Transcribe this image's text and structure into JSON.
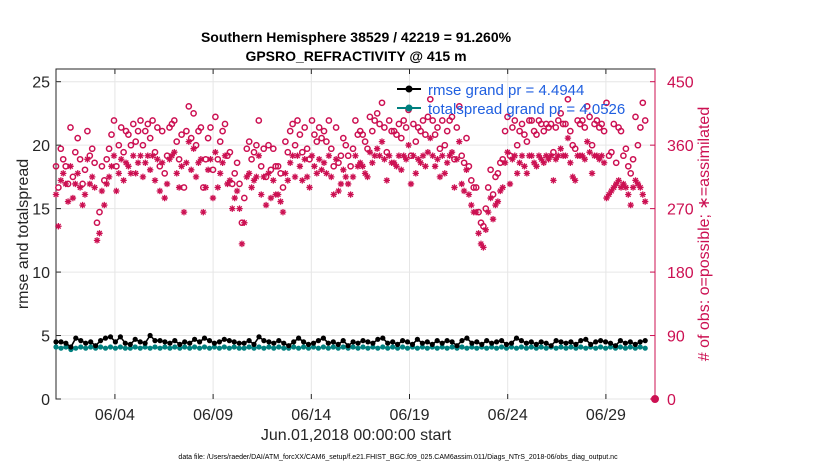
{
  "colors": {
    "rmse": "#000000",
    "spread": "#00807f",
    "obs": "#cc1052",
    "legend_text": "#1f5fe0",
    "axis": "#262626",
    "grid": "#e6e6e6"
  },
  "chart_data": {
    "type": "line",
    "title": "Southern Hemisphere 38529 / 42219 = 91.260%",
    "subtitle": "GPSRO_REFRACTIVITY @ 415 m",
    "xlabel": "Jun.01,2018 00:00:00 start",
    "ylabel": "rmse and totalspread",
    "ylabel_right": "# of obs: o=possible; ∗=assimilated",
    "footer": "data file: /Users/raeder/DAI/ATM_forcXX/CAM6_setup/f.e21.FHIST_BGC.f09_025.CAM6assim.011/Diags_NTrS_2018-06/obs_diag_output.nc",
    "xlim": [
      1,
      31.5
    ],
    "ylim": [
      0,
      26
    ],
    "ylim_right": [
      0,
      468
    ],
    "x_ticks": [
      4,
      9,
      14,
      19,
      24,
      29
    ],
    "x_tick_labels": [
      "06/04",
      "06/09",
      "06/14",
      "06/19",
      "06/24",
      "06/29"
    ],
    "y_ticks": [
      0,
      5,
      10,
      15,
      20,
      25
    ],
    "y_tick_labels": [
      "0",
      "5",
      "10",
      "15",
      "20",
      "25"
    ],
    "y_right_ticks": [
      0,
      90,
      180,
      270,
      360,
      450
    ],
    "y_right_tick_labels": [
      "0",
      "90",
      "180",
      "270",
      "360",
      "450"
    ],
    "legend": [
      "rmse grand pr = 4.4944",
      "totalspread grand pr = 4.0526"
    ],
    "series": [
      {
        "name": "rmse",
        "values": [
          4.5,
          4.5,
          4.4,
          4.1,
          4.8,
          4.6,
          4.4,
          4.5,
          4.2,
          4.6,
          4.8,
          4.9,
          4.5,
          4.9,
          4.4,
          4.3,
          4.7,
          4.5,
          4.4,
          5.0,
          4.6,
          4.6,
          4.5,
          4.4,
          4.6,
          4.3,
          4.5,
          4.4,
          4.7,
          4.5,
          4.8,
          4.6,
          4.4,
          4.5,
          4.7,
          4.6,
          4.5,
          4.4,
          4.4,
          4.6,
          4.3,
          4.9,
          4.6,
          4.5,
          4.4,
          4.6,
          4.4,
          4.2,
          4.5,
          4.8,
          4.5,
          4.3,
          4.4,
          4.6,
          4.8,
          4.4,
          4.5,
          4.3,
          4.6,
          4.2,
          4.5,
          4.4,
          4.6,
          4.5,
          4.4,
          4.7,
          4.8,
          4.4,
          4.5,
          4.3,
          4.6,
          4.5,
          4.3,
          4.7,
          4.4,
          4.5,
          4.3,
          4.6,
          4.4,
          4.6,
          4.5,
          4.2,
          4.6,
          4.8,
          4.4,
          4.5,
          4.3,
          4.6,
          4.4,
          4.5,
          4.6,
          4.3,
          4.4,
          4.8,
          4.6,
          4.4,
          4.5,
          4.3,
          4.5,
          4.4,
          4.2,
          4.6,
          4.5,
          4.4,
          4.5,
          4.3,
          4.6,
          4.7,
          4.3,
          4.5,
          4.6,
          4.5,
          4.4,
          4.2,
          4.6,
          4.4,
          4.5,
          4.3,
          4.5,
          4.6
        ]
      },
      {
        "name": "totalspread",
        "values": [
          4.1,
          4.0,
          4.1,
          3.9,
          4.0,
          4.1,
          4.0,
          4.1,
          4.0,
          4.1,
          4.0,
          4.1,
          4.0,
          4.1,
          4.0,
          4.0,
          4.1,
          4.0,
          4.1,
          4.0,
          4.1,
          4.0,
          4.1,
          4.0,
          4.1,
          4.0,
          4.1,
          4.0,
          4.1,
          4.0,
          4.1,
          4.0,
          4.1,
          4.0,
          4.1,
          4.0,
          4.1,
          4.0,
          4.0,
          4.1,
          4.0,
          4.1,
          4.0,
          4.1,
          4.0,
          4.1,
          4.0,
          4.0,
          4.1,
          4.0,
          4.1,
          4.0,
          4.1,
          4.0,
          4.1,
          4.0,
          4.1,
          4.0,
          4.1,
          4.0,
          4.1,
          4.0,
          4.1,
          4.0,
          4.1,
          4.0,
          4.1,
          4.0,
          4.1,
          4.0,
          4.1,
          4.0,
          4.1,
          4.0,
          4.1,
          4.0,
          4.1,
          4.0,
          4.1,
          4.0,
          4.1,
          4.0,
          4.1,
          4.0,
          4.1,
          4.0,
          4.1,
          4.0,
          4.1,
          4.0,
          4.1,
          4.0,
          4.1,
          4.0,
          4.1,
          4.0,
          4.1,
          4.0,
          4.1,
          4.0,
          4.1,
          4.0,
          4.1,
          4.0,
          4.1,
          4.0,
          4.1,
          4.0,
          4.1,
          4.0,
          4.1,
          4.0,
          4.1,
          4.0,
          4.1,
          4.0,
          4.1,
          4.0,
          4.1,
          4.0
        ]
      },
      {
        "name": "obs possible",
        "axis": "right",
        "values": [
          330,
          300,
          355,
          340,
          330,
          305,
          385,
          315,
          350,
          370,
          340,
          305,
          325,
          380,
          345,
          355,
          335,
          250,
          265,
          330,
          310,
          340,
          355,
          375,
          395,
          330,
          360,
          385,
          350,
          380,
          375,
          360,
          390,
          365,
          380,
          395,
          360,
          380,
          390,
          370,
          395,
          350,
          385,
          330,
          380,
          320,
          345,
          385,
          390,
          395,
          365,
          340,
          375,
          300,
          380,
          415,
          370,
          405,
          360,
          380,
          385,
          300,
          340,
          370,
          385,
          325,
          400,
          340,
          365,
          380,
          390,
          345,
          350,
          305,
          320,
          335,
          305,
          250,
          285,
          355,
          365,
          340,
          350,
          360,
          395,
          330,
          355,
          315,
          360,
          325,
          355,
          330,
          330,
          320,
          300,
          365,
          350,
          380,
          390,
          360,
          395,
          375,
          350,
          385,
          355,
          340,
          395,
          375,
          365,
          385,
          370,
          380,
          365,
          395,
          355,
          330,
          385,
          335,
          345,
          370,
          360,
          345,
          330,
          355,
          395,
          375,
          380,
          375,
          365,
          355,
          400,
          380,
          395,
          405,
          390,
          420,
          385,
          350,
          395,
          380,
          380,
          375,
          390,
          370,
          395,
          385,
          410,
          345,
          390,
          365,
          385,
          380,
          395,
          375,
          400,
          425,
          395,
          375,
          385,
          355,
          395,
          360,
          380,
          395,
          400,
          340,
          385,
          415,
          345,
          335,
          370,
          330,
          310,
          300,
          300,
          265,
          250,
          245,
          270,
          300,
          325,
          290,
          315,
          320,
          335,
          340,
          380,
          400,
          345,
          385,
          395,
          360,
          380,
          390,
          375,
          365,
          395,
          395,
          380,
          375,
          395,
          390,
          380,
          390,
          385,
          390,
          350,
          385,
          395,
          405,
          390,
          390,
          425,
          380,
          360,
          355,
          395,
          390,
          395,
          385,
          415,
          400,
          360,
          390,
          395,
          385,
          390,
          380,
          420,
          345,
          350,
          390,
          335,
          385,
          380,
          345,
          355,
          330,
          320,
          340,
          400,
          360,
          385,
          420,
          395
        ]
      },
      {
        "name": "obs assimilated",
        "axis": "right",
        "values": [
          290,
          245,
          310,
          320,
          305,
          280,
          330,
          285,
          305,
          320,
          300,
          275,
          290,
          340,
          305,
          315,
          300,
          225,
          235,
          295,
          275,
          305,
          315,
          330,
          345,
          295,
          320,
          340,
          310,
          335,
          330,
          320,
          345,
          320,
          335,
          345,
          315,
          335,
          345,
          325,
          345,
          310,
          340,
          295,
          335,
          285,
          305,
          340,
          345,
          350,
          320,
          300,
          330,
          265,
          335,
          365,
          325,
          355,
          315,
          335,
          340,
          265,
          300,
          325,
          340,
          285,
          350,
          300,
          320,
          335,
          345,
          305,
          310,
          270,
          285,
          295,
          270,
          220,
          250,
          315,
          320,
          300,
          310,
          315,
          345,
          290,
          315,
          275,
          320,
          285,
          310,
          290,
          290,
          280,
          265,
          320,
          310,
          335,
          345,
          315,
          345,
          330,
          310,
          340,
          315,
          300,
          345,
          330,
          320,
          340,
          325,
          335,
          320,
          345,
          315,
          290,
          340,
          295,
          305,
          325,
          315,
          305,
          290,
          315,
          345,
          330,
          335,
          330,
          320,
          315,
          350,
          335,
          345,
          355,
          345,
          365,
          340,
          310,
          345,
          335,
          335,
          330,
          345,
          325,
          345,
          340,
          360,
          305,
          345,
          320,
          340,
          335,
          345,
          330,
          350,
          370,
          345,
          330,
          340,
          315,
          345,
          320,
          335,
          345,
          350,
          300,
          340,
          365,
          305,
          295,
          325,
          290,
          275,
          265,
          265,
          235,
          220,
          215,
          240,
          265,
          285,
          255,
          275,
          280,
          295,
          300,
          335,
          350,
          305,
          340,
          345,
          320,
          335,
          345,
          330,
          320,
          345,
          345,
          335,
          330,
          345,
          340,
          335,
          345,
          340,
          345,
          310,
          340,
          345,
          355,
          345,
          345,
          370,
          335,
          315,
          310,
          345,
          345,
          345,
          340,
          365,
          350,
          320,
          345,
          345,
          340,
          345,
          335,
          285,
          290,
          295,
          300,
          305,
          310,
          300,
          305,
          300,
          290,
          275,
          300,
          310,
          305,
          300,
          290,
          280
        ]
      }
    ]
  }
}
